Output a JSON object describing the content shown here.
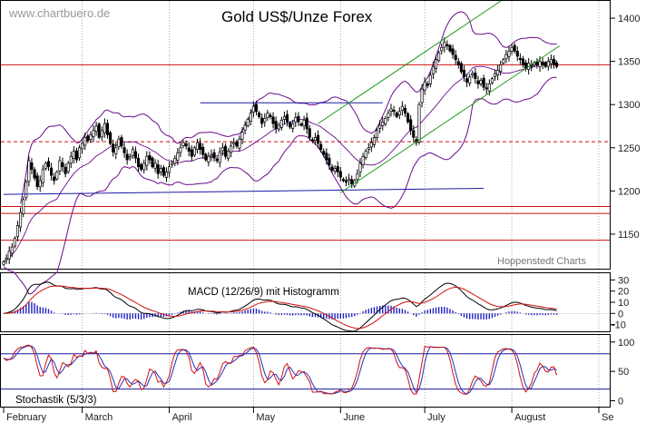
{
  "watermark": "www.chartbuero.de",
  "source_label": "Hoppenstedt Charts",
  "chart_data": {
    "type": "candlestick",
    "title": "Gold US$/Unze Forex",
    "x_axis": {
      "months": [
        "February",
        "March",
        "April",
        "May",
        "June",
        "July",
        "August",
        "Se"
      ],
      "month_start_days": [
        0,
        28,
        59,
        89,
        120,
        150,
        181,
        212
      ],
      "day_range": [
        0,
        212
      ]
    },
    "price_panel": {
      "ylim": [
        1110,
        1420
      ],
      "ticks": [
        1150,
        1200,
        1250,
        1300,
        1350,
        1400
      ],
      "series_close": [
        [
          0,
          1118
        ],
        [
          1,
          1122
        ],
        [
          2,
          1130
        ],
        [
          3,
          1135
        ],
        [
          4,
          1145
        ],
        [
          5,
          1160
        ],
        [
          6,
          1175
        ],
        [
          7,
          1190
        ],
        [
          8,
          1210
        ],
        [
          9,
          1235
        ],
        [
          10,
          1225
        ],
        [
          11,
          1215
        ],
        [
          12,
          1205
        ],
        [
          13,
          1212
        ],
        [
          14,
          1225
        ],
        [
          15,
          1232
        ],
        [
          16,
          1228
        ],
        [
          17,
          1218
        ],
        [
          18,
          1212
        ],
        [
          19,
          1222
        ],
        [
          20,
          1235
        ],
        [
          21,
          1228
        ],
        [
          22,
          1220
        ],
        [
          23,
          1232
        ],
        [
          24,
          1240
        ],
        [
          25,
          1246
        ],
        [
          26,
          1236
        ],
        [
          27,
          1250
        ],
        [
          28,
          1255
        ],
        [
          29,
          1262
        ],
        [
          30,
          1258
        ],
        [
          31,
          1265
        ],
        [
          32,
          1270
        ],
        [
          33,
          1275
        ],
        [
          34,
          1262
        ],
        [
          35,
          1270
        ],
        [
          36,
          1278
        ],
        [
          37,
          1265
        ],
        [
          38,
          1255
        ],
        [
          39,
          1245
        ],
        [
          40,
          1250
        ],
        [
          41,
          1260
        ],
        [
          42,
          1252
        ],
        [
          43,
          1244
        ],
        [
          44,
          1236
        ],
        [
          45,
          1240
        ],
        [
          46,
          1248
        ],
        [
          47,
          1238
        ],
        [
          48,
          1228
        ],
        [
          49,
          1225
        ],
        [
          50,
          1232
        ],
        [
          51,
          1240
        ],
        [
          52,
          1236
        ],
        [
          53,
          1228
        ],
        [
          54,
          1232
        ],
        [
          55,
          1220
        ],
        [
          56,
          1226
        ],
        [
          57,
          1218
        ],
        [
          58,
          1222
        ],
        [
          59,
          1228
        ],
        [
          60,
          1232
        ],
        [
          61,
          1238
        ],
        [
          62,
          1244
        ],
        [
          63,
          1250
        ],
        [
          64,
          1256
        ],
        [
          65,
          1252
        ],
        [
          66,
          1246
        ],
        [
          67,
          1240
        ],
        [
          68,
          1250
        ],
        [
          69,
          1256
        ],
        [
          70,
          1248
        ],
        [
          71,
          1242
        ],
        [
          72,
          1236
        ],
        [
          73,
          1240
        ],
        [
          74,
          1242
        ],
        [
          75,
          1238
        ],
        [
          76,
          1235
        ],
        [
          77,
          1245
        ],
        [
          78,
          1250
        ],
        [
          79,
          1240
        ],
        [
          80,
          1246
        ],
        [
          81,
          1252
        ],
        [
          82,
          1256
        ],
        [
          83,
          1252
        ],
        [
          84,
          1260
        ],
        [
          85,
          1268
        ],
        [
          86,
          1276
        ],
        [
          87,
          1283
        ],
        [
          88,
          1290
        ],
        [
          89,
          1298
        ],
        [
          90,
          1292
        ],
        [
          91,
          1286
        ],
        [
          92,
          1278
        ],
        [
          93,
          1284
        ],
        [
          94,
          1290
        ],
        [
          95,
          1286
        ],
        [
          96,
          1278
        ],
        [
          97,
          1272
        ],
        [
          98,
          1276
        ],
        [
          99,
          1282
        ],
        [
          100,
          1286
        ],
        [
          101,
          1280
        ],
        [
          102,
          1274
        ],
        [
          103,
          1278
        ],
        [
          104,
          1285
        ],
        [
          105,
          1280
        ],
        [
          106,
          1276
        ],
        [
          107,
          1282
        ],
        [
          108,
          1272
        ],
        [
          109,
          1262
        ],
        [
          110,
          1258
        ],
        [
          111,
          1262
        ],
        [
          112,
          1255
        ],
        [
          113,
          1248
        ],
        [
          114,
          1242
        ],
        [
          115,
          1236
        ],
        [
          116,
          1230
        ],
        [
          117,
          1224
        ],
        [
          118,
          1226
        ],
        [
          119,
          1222
        ],
        [
          120,
          1216
        ],
        [
          121,
          1212
        ],
        [
          122,
          1210
        ],
        [
          123,
          1214
        ],
        [
          124,
          1208
        ],
        [
          125,
          1212
        ],
        [
          126,
          1220
        ],
        [
          127,
          1232
        ],
        [
          128,
          1240
        ],
        [
          129,
          1246
        ],
        [
          130,
          1250
        ],
        [
          131,
          1256
        ],
        [
          132,
          1262
        ],
        [
          133,
          1270
        ],
        [
          134,
          1276
        ],
        [
          135,
          1280
        ],
        [
          136,
          1284
        ],
        [
          137,
          1290
        ],
        [
          138,
          1295
        ],
        [
          139,
          1292
        ],
        [
          140,
          1286
        ],
        [
          141,
          1292
        ],
        [
          142,
          1298
        ],
        [
          143,
          1290
        ],
        [
          144,
          1280
        ],
        [
          145,
          1270
        ],
        [
          146,
          1262
        ],
        [
          147,
          1256
        ],
        [
          148,
          1300
        ],
        [
          149,
          1318
        ],
        [
          150,
          1326
        ],
        [
          151,
          1322
        ],
        [
          152,
          1334
        ],
        [
          153,
          1344
        ],
        [
          154,
          1352
        ],
        [
          155,
          1360
        ],
        [
          156,
          1366
        ],
        [
          157,
          1372
        ],
        [
          158,
          1368
        ],
        [
          159,
          1362
        ],
        [
          160,
          1358
        ],
        [
          161,
          1352
        ],
        [
          162,
          1346
        ],
        [
          163,
          1338
        ],
        [
          164,
          1332
        ],
        [
          165,
          1326
        ],
        [
          166,
          1332
        ],
        [
          167,
          1336
        ],
        [
          168,
          1330
        ],
        [
          169,
          1324
        ],
        [
          170,
          1328
        ],
        [
          171,
          1320
        ],
        [
          172,
          1318
        ],
        [
          173,
          1324
        ],
        [
          174,
          1330
        ],
        [
          175,
          1336
        ],
        [
          176,
          1340
        ],
        [
          177,
          1346
        ],
        [
          178,
          1352
        ],
        [
          179,
          1358
        ],
        [
          180,
          1362
        ],
        [
          181,
          1366
        ],
        [
          182,
          1362
        ],
        [
          183,
          1356
        ],
        [
          184,
          1352
        ],
        [
          185,
          1346
        ],
        [
          186,
          1342
        ],
        [
          187,
          1348
        ],
        [
          188,
          1344
        ],
        [
          189,
          1348
        ],
        [
          190,
          1346
        ],
        [
          191,
          1350
        ],
        [
          192,
          1346
        ],
        [
          193,
          1344
        ],
        [
          194,
          1350
        ],
        [
          195,
          1352
        ],
        [
          196,
          1346
        ],
        [
          197,
          1344
        ]
      ],
      "horizontal_lines": [
        {
          "price": 1346,
          "style": "solid",
          "color": "#d01010"
        },
        {
          "price": 1257,
          "style": "dashed",
          "color": "#d01010"
        },
        {
          "price": 1182,
          "style": "solid",
          "color": "#d01010"
        },
        {
          "price": 1174,
          "style": "solid",
          "color": "#d01010"
        },
        {
          "price": 1143,
          "style": "solid",
          "color": "#d01010"
        }
      ],
      "blue_lines": [
        {
          "from": [
            70,
            1302
          ],
          "to": [
            135,
            1302
          ]
        },
        {
          "from": [
            0,
            1196
          ],
          "to": [
            171,
            1203
          ]
        }
      ],
      "channel_lines": [
        {
          "from": [
            120,
            1198
          ],
          "to": [
            198,
            1368
          ]
        },
        {
          "from": [
            112,
            1278
          ],
          "to": [
            184,
            1435
          ]
        }
      ]
    },
    "macd_panel": {
      "label": "MACD (12/26/9) mit Histogramm",
      "ticks": [
        30,
        20,
        10,
        0,
        -10
      ],
      "ylim": [
        -16,
        36
      ]
    },
    "stochastic_panel": {
      "label": "Stochastik (5/3/3)",
      "ticks": [
        100,
        50,
        0
      ],
      "ylim": [
        -10,
        112
      ],
      "levels": [
        80,
        20
      ]
    }
  },
  "colors": {
    "candle_up": "#ffffff",
    "candle_down": "#000000",
    "bollinger": "#6a0a8a",
    "macd_line": "#000000",
    "signal_line": "#d01010",
    "histogram": "#2020c0",
    "blue_line": "#1a1aa0",
    "channel": "#1a9a1a",
    "stoch_k": "#d01010",
    "stoch_d": "#2030c0"
  }
}
